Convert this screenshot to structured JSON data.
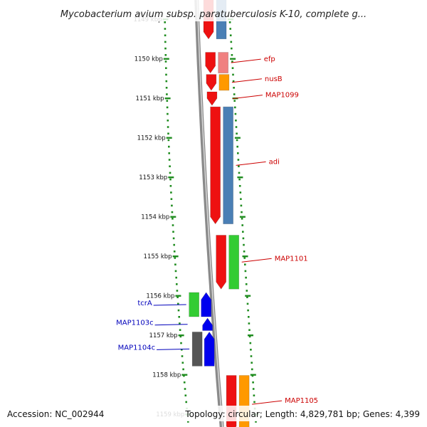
{
  "header": {
    "title": "Mycobacterium avium subsp. paratuberculosis K-10, complete g..."
  },
  "footer": {
    "accession": "Accession: NC_002944",
    "summary": "Topology: circular; Length: 4,829,781 bp; Genes: 4,399"
  },
  "ruler": {
    "ticks": [
      {
        "label": "1149 kbp",
        "kbp": 1149
      },
      {
        "label": "1150 kbp",
        "kbp": 1150
      },
      {
        "label": "1151 kbp",
        "kbp": 1151
      },
      {
        "label": "1152 kbp",
        "kbp": 1152
      },
      {
        "label": "1153 kbp",
        "kbp": 1153
      },
      {
        "label": "1154 kbp",
        "kbp": 1154
      },
      {
        "label": "1155 kbp",
        "kbp": 1155
      },
      {
        "label": "1156 kbp",
        "kbp": 1156
      },
      {
        "label": "1157 kbp",
        "kbp": 1157
      },
      {
        "label": "1158 kbp",
        "kbp": 1158
      },
      {
        "label": "1159 kbp",
        "kbp": 1159
      }
    ]
  },
  "colors": {
    "backbone": "#8a8a8a",
    "ruler": "#1f8c1f",
    "forward_label": "#cc0000",
    "reverse_label": "#0000bb",
    "cds": "#ee1111",
    "cog_blue": "#4a7fb5",
    "cog_pink": "#f08080",
    "cog_orange": "#ff9900",
    "cog_green": "#33cc33",
    "cog_grey": "#555555",
    "reverse_cds": "#0000ee",
    "cyan": "#22dddd"
  },
  "genes": {
    "forward": [
      {
        "name": "efp",
        "start_kbp": 1149.82,
        "end_kbp": 1150.38,
        "cog": "cog_pink"
      },
      {
        "name": "nusB",
        "start_kbp": 1150.38,
        "end_kbp": 1150.82,
        "cog": "cog_orange"
      },
      {
        "name": "MAP1099",
        "start_kbp": 1150.82,
        "end_kbp": 1151.2,
        "cog": null
      },
      {
        "name": "adi",
        "start_kbp": 1151.2,
        "end_kbp": 1154.2,
        "cog": "cog_blue"
      },
      {
        "name": "MAP1101",
        "start_kbp": 1154.45,
        "end_kbp": 1155.85,
        "cog": "cog_green"
      },
      {
        "name": "MAP1105",
        "start_kbp": 1158.0,
        "end_kbp": 1159.5,
        "cog": "cog_orange"
      }
    ],
    "reverse": [
      {
        "name": "tcrA",
        "start_kbp": 1155.9,
        "end_kbp": 1156.55,
        "cog": "cog_green"
      },
      {
        "name": "MAP1103c",
        "start_kbp": 1156.55,
        "end_kbp": 1156.9,
        "cog": null
      },
      {
        "name": "MAP1104c",
        "start_kbp": 1156.9,
        "end_kbp": 1157.8,
        "cog": "cog_grey"
      }
    ]
  }
}
